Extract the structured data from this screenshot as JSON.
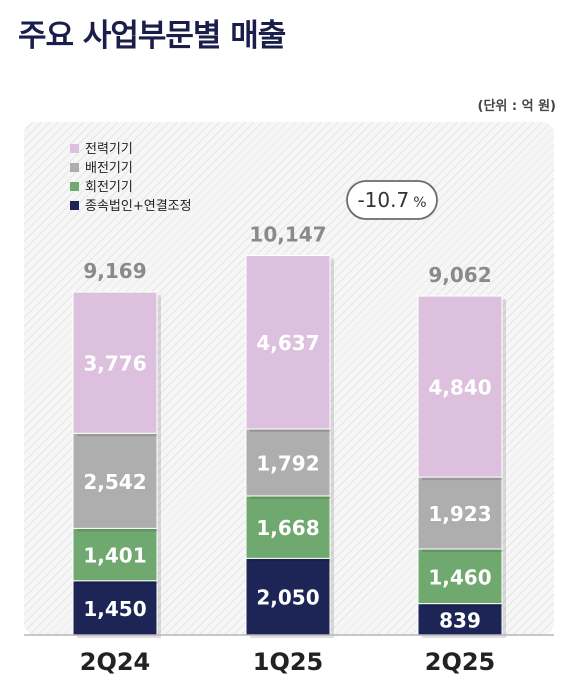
{
  "page": {
    "title": "주요 사업부문별 매출",
    "unit_note": "(단위 : 억 원)"
  },
  "chart_data": {
    "type": "bar",
    "stacked": true,
    "categories": [
      "2Q24",
      "1Q25",
      "2Q25"
    ],
    "series": [
      {
        "name": "종속법인+연결조정",
        "color": "#1d2557",
        "label_color": "#ffffff",
        "values": [
          1450,
          2050,
          839
        ]
      },
      {
        "name": "회전기기",
        "color": "#6fa96f",
        "label_color": "#ffffff",
        "values": [
          1401,
          1668,
          1460
        ]
      },
      {
        "name": "배전기기",
        "color": "#aeaeae",
        "label_color": "#ffffff",
        "values": [
          2542,
          1792,
          1923
        ]
      },
      {
        "name": "전력기기",
        "color": "#dcc0dd",
        "label_color": "#ffffff",
        "values": [
          3776,
          4637,
          4840
        ]
      }
    ],
    "value_labels": [
      [
        "1,450",
        "1,401",
        "2,542",
        "3,776"
      ],
      [
        "2,050",
        "1,668",
        "1,792",
        "4,637"
      ],
      [
        "839",
        "1,460",
        "1,923",
        "4,840"
      ]
    ],
    "totals": [
      "9,169",
      "10,147",
      "9,062"
    ],
    "legend_order": [
      "전력기기",
      "배전기기",
      "회전기기",
      "종속법인+연결조정"
    ],
    "legend_position": "top-left",
    "annotation": {
      "text": "-10.7",
      "unit": "%"
    },
    "grid": false
  }
}
